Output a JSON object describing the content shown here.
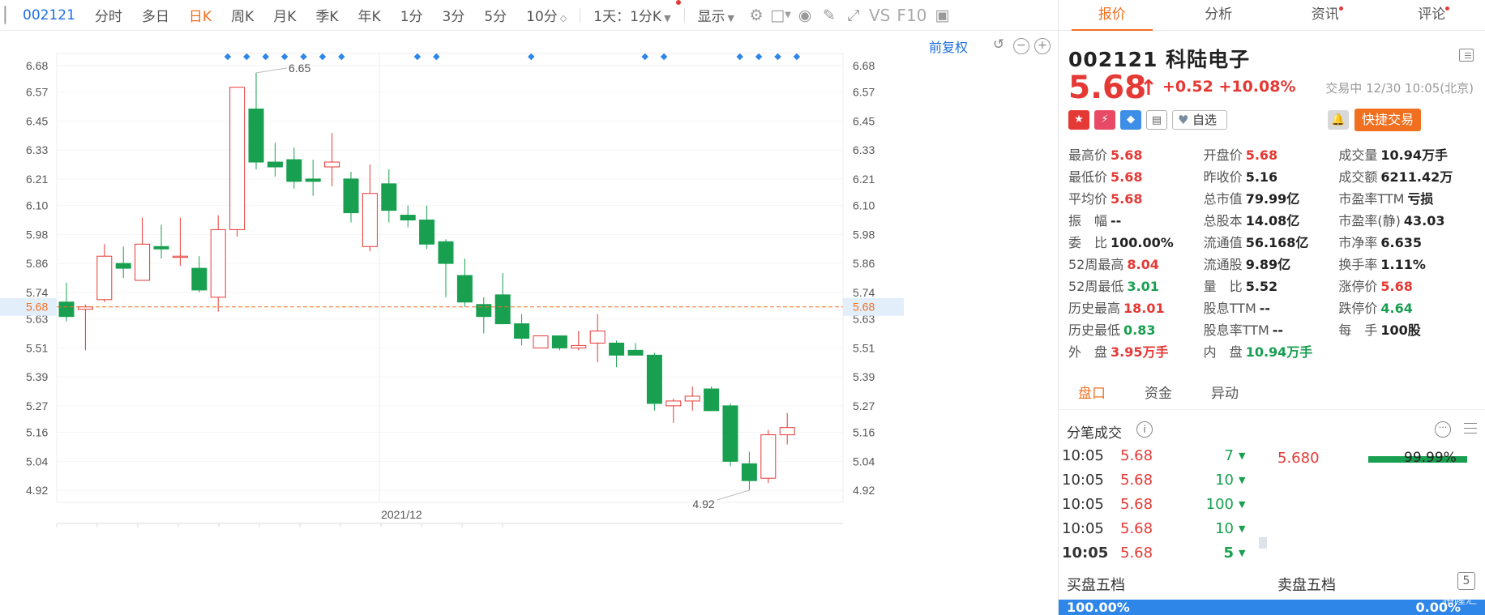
{
  "toolbar": {
    "code": "002121",
    "tabs": [
      "分时",
      "多日",
      "日K",
      "周K",
      "月K",
      "季K",
      "年K",
      "1分",
      "3分",
      "5分",
      "10分"
    ],
    "active_tab": "日K",
    "period_select": "1天：1分K",
    "display_label": "显示",
    "vs_label": "VS",
    "f10_label": "F10"
  },
  "chart": {
    "adjust_label": "前复权",
    "current_price_label": "5.68",
    "month_label": "2021/12",
    "high_label": "6.65",
    "low_label": "4.92"
  },
  "chart_data": {
    "type": "candlestick",
    "y_ticks": [
      "6.68",
      "6.57",
      "6.45",
      "6.33",
      "6.21",
      "6.10",
      "5.98",
      "5.86",
      "5.74",
      "5.63",
      "5.51",
      "5.39",
      "5.27",
      "5.16",
      "5.04",
      "4.92"
    ],
    "ylim": [
      4.87,
      6.73
    ],
    "current_price": 5.68,
    "x_label": "2021/12",
    "month_boundary_index": 17,
    "annotations": [
      {
        "text": "6.65",
        "index": 10
      },
      {
        "text": "4.92",
        "index": 36
      }
    ],
    "candles": [
      {
        "o": 5.7,
        "h": 5.78,
        "l": 5.62,
        "c": 5.64
      },
      {
        "o": 5.67,
        "h": 5.69,
        "l": 5.5,
        "c": 5.68
      },
      {
        "o": 5.71,
        "h": 5.94,
        "l": 5.7,
        "c": 5.89
      },
      {
        "o": 5.86,
        "h": 5.93,
        "l": 5.8,
        "c": 5.84
      },
      {
        "o": 5.79,
        "h": 6.05,
        "l": 5.79,
        "c": 5.94
      },
      {
        "o": 5.93,
        "h": 6.02,
        "l": 5.88,
        "c": 5.92
      },
      {
        "o": 5.89,
        "h": 6.05,
        "l": 5.85,
        "c": 5.89
      },
      {
        "o": 5.84,
        "h": 5.89,
        "l": 5.74,
        "c": 5.75
      },
      {
        "o": 5.72,
        "h": 6.06,
        "l": 5.66,
        "c": 6.0
      },
      {
        "o": 6.0,
        "h": 6.59,
        "l": 5.97,
        "c": 6.59
      },
      {
        "o": 6.5,
        "h": 6.65,
        "l": 6.25,
        "c": 6.28
      },
      {
        "o": 6.28,
        "h": 6.36,
        "l": 6.22,
        "c": 6.26
      },
      {
        "o": 6.29,
        "h": 6.34,
        "l": 6.17,
        "c": 6.2
      },
      {
        "o": 6.21,
        "h": 6.29,
        "l": 6.14,
        "c": 6.2
      },
      {
        "o": 6.26,
        "h": 6.4,
        "l": 6.18,
        "c": 6.28
      },
      {
        "o": 6.21,
        "h": 6.24,
        "l": 6.03,
        "c": 6.07
      },
      {
        "o": 5.93,
        "h": 6.27,
        "l": 5.91,
        "c": 6.15
      },
      {
        "o": 6.19,
        "h": 6.25,
        "l": 6.03,
        "c": 6.08
      },
      {
        "o": 6.06,
        "h": 6.1,
        "l": 6.01,
        "c": 6.04
      },
      {
        "o": 6.04,
        "h": 6.1,
        "l": 5.92,
        "c": 5.94
      },
      {
        "o": 5.95,
        "h": 5.96,
        "l": 5.72,
        "c": 5.86
      },
      {
        "o": 5.81,
        "h": 5.88,
        "l": 5.68,
        "c": 5.7
      },
      {
        "o": 5.69,
        "h": 5.72,
        "l": 5.57,
        "c": 5.64
      },
      {
        "o": 5.73,
        "h": 5.82,
        "l": 5.62,
        "c": 5.61
      },
      {
        "o": 5.61,
        "h": 5.65,
        "l": 5.52,
        "c": 5.55
      },
      {
        "o": 5.51,
        "h": 5.56,
        "l": 5.51,
        "c": 5.56
      },
      {
        "o": 5.56,
        "h": 5.55,
        "l": 5.5,
        "c": 5.51
      },
      {
        "o": 5.51,
        "h": 5.58,
        "l": 5.5,
        "c": 5.52
      },
      {
        "o": 5.53,
        "h": 5.65,
        "l": 5.45,
        "c": 5.58
      },
      {
        "o": 5.53,
        "h": 5.54,
        "l": 5.43,
        "c": 5.48
      },
      {
        "o": 5.5,
        "h": 5.53,
        "l": 5.48,
        "c": 5.48
      },
      {
        "o": 5.48,
        "h": 5.49,
        "l": 5.25,
        "c": 5.28
      },
      {
        "o": 5.27,
        "h": 5.3,
        "l": 5.2,
        "c": 5.29
      },
      {
        "o": 5.29,
        "h": 5.35,
        "l": 5.25,
        "c": 5.31
      },
      {
        "o": 5.34,
        "h": 5.35,
        "l": 5.25,
        "c": 5.25
      },
      {
        "o": 5.27,
        "h": 5.28,
        "l": 5.02,
        "c": 5.04
      },
      {
        "o": 5.03,
        "h": 5.08,
        "l": 4.92,
        "c": 4.96
      },
      {
        "o": 4.97,
        "h": 5.17,
        "l": 4.95,
        "c": 5.15
      },
      {
        "o": 5.15,
        "h": 5.24,
        "l": 5.11,
        "c": 5.18
      }
    ]
  },
  "right_tabs": [
    {
      "label": "报价",
      "dot": false
    },
    {
      "label": "分析",
      "dot": false
    },
    {
      "label": "资讯",
      "dot": true
    },
    {
      "label": "评论",
      "dot": true
    }
  ],
  "stock": {
    "code": "002121",
    "name": "科陆电子",
    "price": "5.68",
    "change": "+0.52",
    "change_pct": "+10.08%",
    "trade_time": "交易中 12/30 10:05(北京)",
    "fav_label": "自选",
    "quick_trade_label": "快捷交易"
  },
  "quote_rows": [
    [
      {
        "k": "最高价",
        "v": "5.68",
        "c": "red"
      },
      {
        "k": "开盘价",
        "v": "5.68",
        "c": "red"
      },
      {
        "k": "成交量",
        "v": "10.94万手",
        "c": "dark"
      }
    ],
    [
      {
        "k": "最低价",
        "v": "5.68",
        "c": "red"
      },
      {
        "k": "昨收价",
        "v": "5.16",
        "c": "dark"
      },
      {
        "k": "成交额",
        "v": "6211.42万",
        "c": "dark"
      }
    ],
    [
      {
        "k": "平均价",
        "v": "5.68",
        "c": "red"
      },
      {
        "k": "总市值",
        "v": "79.99亿",
        "c": "dark"
      },
      {
        "k": "市盈率TTM",
        "v": "亏损",
        "c": "dark"
      }
    ],
    [
      {
        "k": "振　幅",
        "v": "--",
        "c": "dark"
      },
      {
        "k": "总股本",
        "v": "14.08亿",
        "c": "dark"
      },
      {
        "k": "市盈率(静)",
        "v": "43.03",
        "c": "dark"
      }
    ],
    [
      {
        "k": "委　比",
        "v": "100.00%",
        "c": "dark"
      },
      {
        "k": "流通值",
        "v": "56.168亿",
        "c": "dark"
      },
      {
        "k": "市净率",
        "v": "6.635",
        "c": "dark"
      }
    ],
    [
      {
        "k": "52周最高",
        "v": "8.04",
        "c": "red"
      },
      {
        "k": "流通股",
        "v": "9.89亿",
        "c": "dark"
      },
      {
        "k": "换手率",
        "v": "1.11%",
        "c": "dark"
      }
    ],
    [
      {
        "k": "52周最低",
        "v": "3.01",
        "c": "green"
      },
      {
        "k": "量　比",
        "v": "5.52",
        "c": "dark"
      },
      {
        "k": "涨停价",
        "v": "5.68",
        "c": "red"
      }
    ],
    [
      {
        "k": "历史最高",
        "v": "18.01",
        "c": "red"
      },
      {
        "k": "股息TTM",
        "v": "--",
        "c": "dark"
      },
      {
        "k": "跌停价",
        "v": "4.64",
        "c": "green"
      }
    ],
    [
      {
        "k": "历史最低",
        "v": "0.83",
        "c": "green"
      },
      {
        "k": "股息率TTM",
        "v": "--",
        "c": "dark"
      },
      {
        "k": "每　手",
        "v": "100股",
        "c": "dark"
      }
    ],
    [
      {
        "k": "外　盘",
        "v": "3.95万手",
        "c": "red"
      },
      {
        "k": "内　盘",
        "v": "10.94万手",
        "c": "green"
      },
      {
        "k": "",
        "v": "",
        "c": "dark"
      }
    ]
  ],
  "sub_tabs": [
    "盘口",
    "资金",
    "异动"
  ],
  "ticks": {
    "header": "分笔成交",
    "rows": [
      {
        "time": "10:05",
        "price": "5.68",
        "vol": "7"
      },
      {
        "time": "10:05",
        "price": "5.68",
        "vol": "10"
      },
      {
        "time": "10:05",
        "price": "5.68",
        "vol": "100"
      },
      {
        "time": "10:05",
        "price": "5.68",
        "vol": "10"
      },
      {
        "time": "10:05",
        "price": "5.68",
        "vol": "5"
      }
    ],
    "vol_price": "5.680",
    "vol_pct": "99.99%"
  },
  "order_book": {
    "buy_label": "买盘五档",
    "sell_label": "卖盘五档",
    "buy_pct": "100.00%",
    "sell_pct": "0.00%",
    "watermark": "格隆汇"
  },
  "colors": {
    "up": "#e53935",
    "down": "#18a050",
    "accent": "#f07020",
    "link": "#1e6fe0"
  }
}
